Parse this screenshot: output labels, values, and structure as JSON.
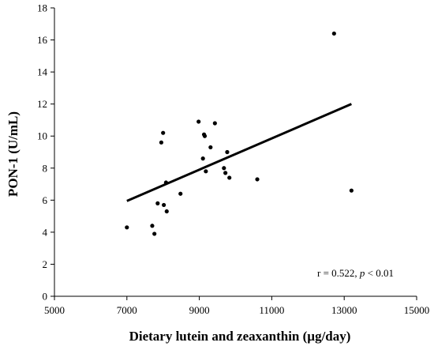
{
  "chart_data": {
    "type": "scatter",
    "xlabel": "Dietary lutein and zeaxanthin (µg/day)",
    "ylabel": "PON-1 (U/mL)",
    "xlim": [
      5000,
      15000
    ],
    "ylim": [
      0,
      18
    ],
    "x_ticks": [
      5000,
      7000,
      9000,
      11000,
      13000,
      15000
    ],
    "y_ticks": [
      0,
      2,
      4,
      6,
      8,
      10,
      12,
      14,
      16,
      18
    ],
    "grid": false,
    "points": [
      {
        "x": 7000,
        "y": 4.3
      },
      {
        "x": 7700,
        "y": 4.4
      },
      {
        "x": 7760,
        "y": 3.9
      },
      {
        "x": 7850,
        "y": 5.8
      },
      {
        "x": 7950,
        "y": 9.6
      },
      {
        "x": 8000,
        "y": 10.2
      },
      {
        "x": 8020,
        "y": 5.7
      },
      {
        "x": 8080,
        "y": 7.1
      },
      {
        "x": 8100,
        "y": 5.3
      },
      {
        "x": 8480,
        "y": 6.4
      },
      {
        "x": 8980,
        "y": 10.9
      },
      {
        "x": 9100,
        "y": 8.6
      },
      {
        "x": 9130,
        "y": 10.1
      },
      {
        "x": 9150,
        "y": 10.0
      },
      {
        "x": 9180,
        "y": 7.8
      },
      {
        "x": 9310,
        "y": 9.3
      },
      {
        "x": 9430,
        "y": 10.8
      },
      {
        "x": 9680,
        "y": 8.0
      },
      {
        "x": 9720,
        "y": 7.7
      },
      {
        "x": 9770,
        "y": 9.0
      },
      {
        "x": 9830,
        "y": 7.4
      },
      {
        "x": 10600,
        "y": 7.3
      },
      {
        "x": 12720,
        "y": 16.4
      },
      {
        "x": 13200,
        "y": 6.6
      }
    ],
    "trendline": {
      "x": [
        7000,
        13200
      ],
      "y": [
        5.95,
        12.0
      ]
    },
    "annotation": {
      "text_prefix": "r = 0.522, ",
      "text_italic": "p",
      "text_suffix": " < 0.01"
    }
  }
}
